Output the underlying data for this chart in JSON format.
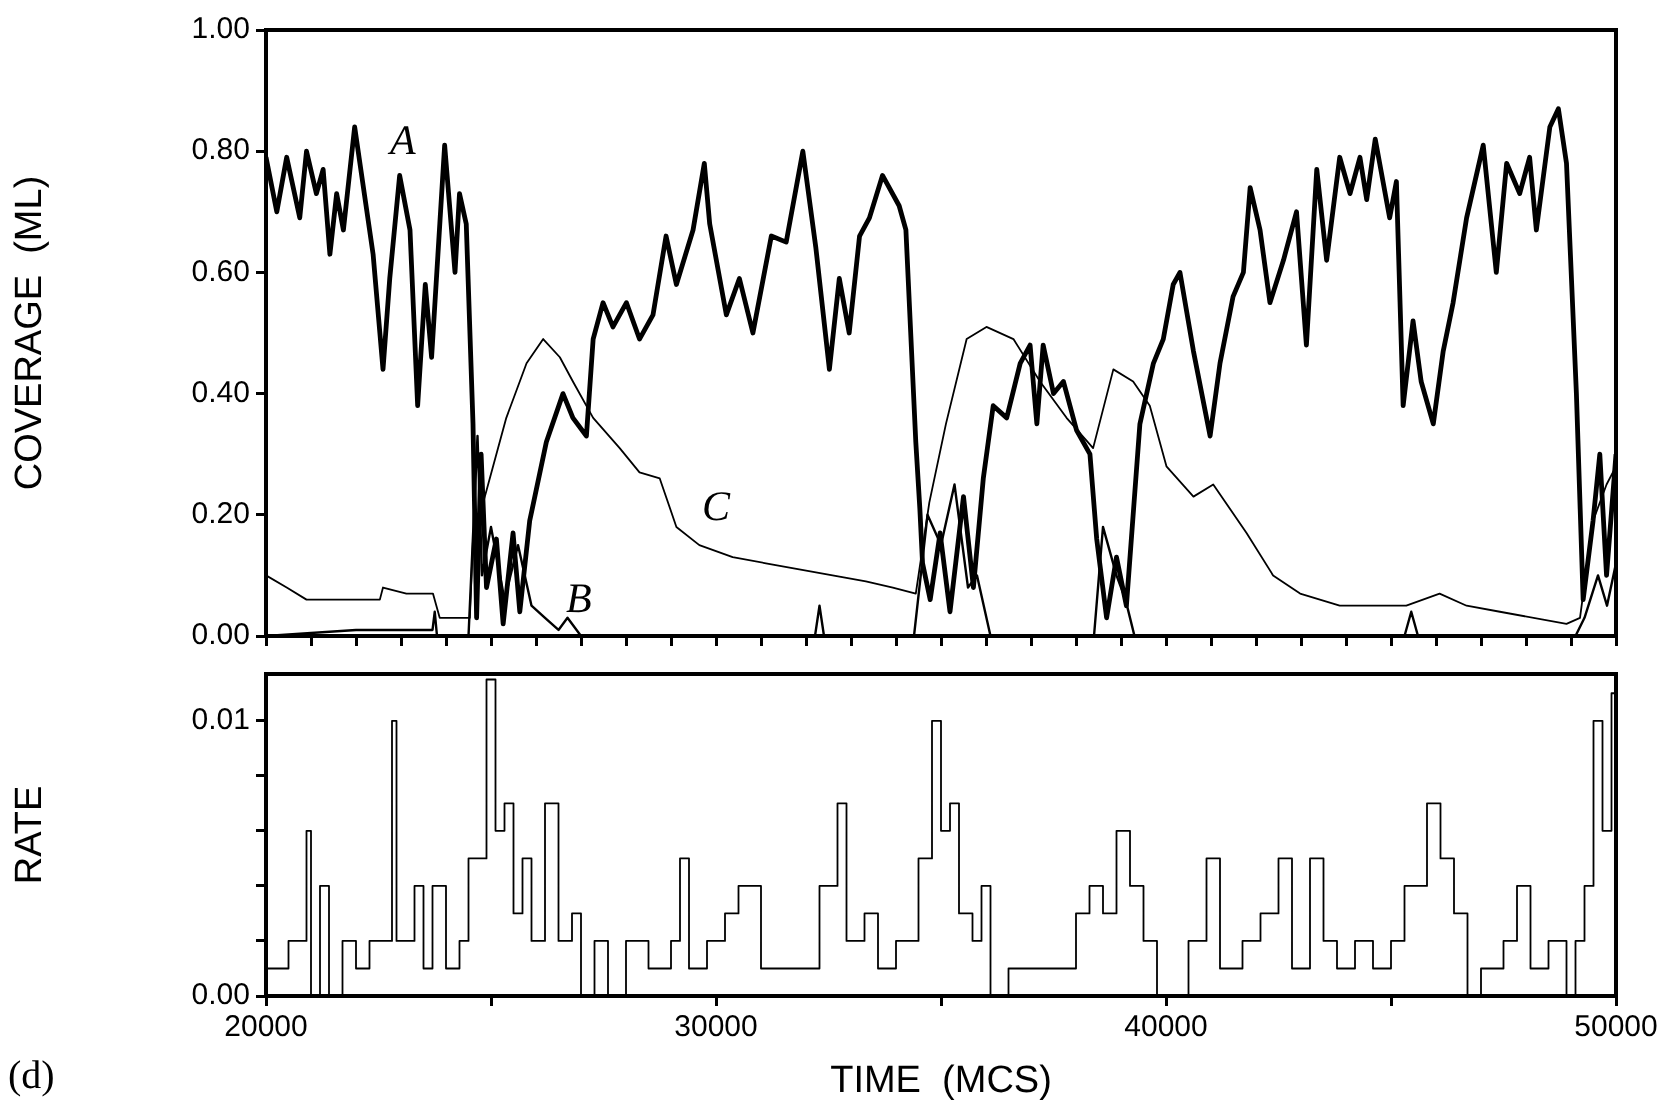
{
  "chart_data": [
    {
      "type": "line",
      "ylabel": "COVERAGE  (ML)",
      "xlim": [
        20000,
        50000
      ],
      "ylim": [
        0,
        1
      ],
      "xticks": [
        {
          "value": 20000,
          "label": null
        },
        {
          "value": 21000,
          "label": null
        },
        {
          "value": 22000,
          "label": null
        },
        {
          "value": 23000,
          "label": null
        },
        {
          "value": 24000,
          "label": null
        },
        {
          "value": 25000,
          "label": null
        },
        {
          "value": 26000,
          "label": null
        },
        {
          "value": 27000,
          "label": null
        },
        {
          "value": 28000,
          "label": null
        },
        {
          "value": 29000,
          "label": null
        },
        {
          "value": 30000,
          "label": null
        },
        {
          "value": 31000,
          "label": null
        },
        {
          "value": 32000,
          "label": null
        },
        {
          "value": 33000,
          "label": null
        },
        {
          "value": 34000,
          "label": null
        },
        {
          "value": 35000,
          "label": null
        },
        {
          "value": 36000,
          "label": null
        },
        {
          "value": 37000,
          "label": null
        },
        {
          "value": 38000,
          "label": null
        },
        {
          "value": 39000,
          "label": null
        },
        {
          "value": 40000,
          "label": null
        },
        {
          "value": 41000,
          "label": null
        },
        {
          "value": 42000,
          "label": null
        },
        {
          "value": 43000,
          "label": null
        },
        {
          "value": 44000,
          "label": null
        },
        {
          "value": 45000,
          "label": null
        },
        {
          "value": 46000,
          "label": null
        },
        {
          "value": 47000,
          "label": null
        },
        {
          "value": 48000,
          "label": null
        },
        {
          "value": 49000,
          "label": null
        },
        {
          "value": 50000,
          "label": null
        }
      ],
      "yticks": [
        {
          "value": 0,
          "label": "0.00"
        },
        {
          "value": 0.2,
          "label": "0.20"
        },
        {
          "value": 0.4,
          "label": "0.40"
        },
        {
          "value": 0.6,
          "label": "0.60"
        },
        {
          "value": 0.8,
          "label": "0.80"
        },
        {
          "value": 1,
          "label": "1.00"
        }
      ],
      "tick_labels": "y",
      "grid": false,
      "legend": false,
      "marker": "none",
      "annotations": [
        "A",
        "B",
        "C"
      ],
      "series": [
        {
          "color": "#000000",
          "x": [
            20000,
            20240,
            20460,
            20750,
            20900,
            21120,
            21270,
            21420,
            21570,
            21720,
            21970,
            22380,
            22600,
            22750,
            22970,
            23200,
            23370,
            23540,
            23680,
            23970,
            24200,
            24300,
            24450,
            24600,
            24680,
            24780,
            24900,
            25120,
            25270,
            25490,
            25640,
            25860,
            26230,
            26600,
            26820,
            27120,
            27270,
            27490,
            27710,
            28010,
            28300,
            28600,
            28890,
            29120,
            29490,
            29740,
            29860,
            30230,
            30520,
            30820,
            31230,
            31560,
            31930,
            32220,
            32520,
            32740,
            32960,
            33190,
            33410,
            33700,
            34070,
            34220,
            34440,
            34530,
            34590,
            34760,
            34980,
            35200,
            35500,
            35720,
            35940,
            36160,
            36460,
            36760,
            36980,
            37130,
            37270,
            37500,
            37720,
            38010,
            38310,
            38460,
            38680,
            38900,
            39120,
            39420,
            39720,
            39940,
            40160,
            40310,
            40610,
            40980,
            41200,
            41490,
            41720,
            41870,
            42090,
            42310,
            42610,
            42900,
            43120,
            43350,
            43570,
            43860,
            44090,
            44310,
            44460,
            44650,
            44970,
            45120,
            45270,
            45490,
            45670,
            45940,
            46160,
            46380,
            46680,
            47050,
            47340,
            47570,
            47860,
            48080,
            48230,
            48530,
            48720,
            48900,
            49120,
            49270,
            49490,
            49640,
            49790,
            50000
          ],
          "values": [
            0.79,
            0.7,
            0.79,
            0.69,
            0.8,
            0.73,
            0.77,
            0.63,
            0.73,
            0.67,
            0.84,
            0.63,
            0.44,
            0.59,
            0.76,
            0.67,
            0.38,
            0.58,
            0.46,
            0.81,
            0.6,
            0.73,
            0.68,
            0.35,
            0.03,
            0.3,
            0.08,
            0.16,
            0.02,
            0.17,
            0.04,
            0.19,
            0.32,
            0.4,
            0.36,
            0.33,
            0.49,
            0.55,
            0.51,
            0.55,
            0.49,
            0.53,
            0.66,
            0.58,
            0.67,
            0.78,
            0.68,
            0.53,
            0.59,
            0.5,
            0.66,
            0.65,
            0.8,
            0.64,
            0.44,
            0.59,
            0.5,
            0.66,
            0.69,
            0.76,
            0.71,
            0.67,
            0.32,
            0.21,
            0.12,
            0.06,
            0.17,
            0.04,
            0.23,
            0.08,
            0.26,
            0.38,
            0.36,
            0.45,
            0.48,
            0.35,
            0.48,
            0.4,
            0.42,
            0.34,
            0.3,
            0.16,
            0.03,
            0.13,
            0.05,
            0.35,
            0.45,
            0.49,
            0.58,
            0.6,
            0.47,
            0.33,
            0.45,
            0.56,
            0.6,
            0.74,
            0.67,
            0.55,
            0.62,
            0.7,
            0.48,
            0.77,
            0.62,
            0.79,
            0.73,
            0.79,
            0.72,
            0.82,
            0.69,
            0.75,
            0.38,
            0.52,
            0.42,
            0.35,
            0.47,
            0.55,
            0.69,
            0.81,
            0.6,
            0.78,
            0.73,
            0.79,
            0.67,
            0.84,
            0.87,
            0.78,
            0.4,
            0.06,
            0.19,
            0.3,
            0.1,
            0.3
          ]
        },
        {
          "color": "#000000",
          "x": [
            20000,
            22000,
            23700,
            23750,
            23800,
            24500,
            24700,
            24800,
            25000,
            25300,
            25600,
            25900,
            26200,
            26500,
            26700,
            27000,
            32200,
            32300,
            32400,
            34400,
            34700,
            35000,
            35300,
            35600,
            35800,
            36100,
            38400,
            38600,
            38900,
            39100,
            39300,
            45300,
            45450,
            45600,
            49100,
            49300,
            49600,
            49800,
            50000
          ],
          "values": [
            0,
            0.01,
            0.01,
            0.04,
            0,
            0,
            0.33,
            0.1,
            0.18,
            0.06,
            0.15,
            0.05,
            0.03,
            0.01,
            0.03,
            0,
            0,
            0.05,
            0,
            0,
            0.2,
            0.15,
            0.25,
            0.08,
            0.1,
            0,
            0,
            0.18,
            0.1,
            0.06,
            0,
            0,
            0.04,
            0,
            0,
            0.03,
            0.1,
            0.05,
            0.12
          ]
        },
        {
          "color": "#000000",
          "x": [
            20000,
            20460,
            20900,
            22530,
            22600,
            23120,
            23710,
            23860,
            24530,
            24600,
            24900,
            25340,
            25790,
            26160,
            26530,
            26820,
            27270,
            27860,
            28300,
            28750,
            29120,
            29630,
            30370,
            31110,
            31850,
            32590,
            33330,
            33930,
            34440,
            34740,
            35110,
            35570,
            36010,
            36610,
            37200,
            37790,
            38380,
            38830,
            39270,
            39640,
            40010,
            40610,
            41050,
            41790,
            42380,
            42980,
            43860,
            45340,
            46080,
            46680,
            47420,
            48900,
            49200,
            49490,
            49790,
            50000
          ],
          "values": [
            0.1,
            0.08,
            0.06,
            0.06,
            0.08,
            0.07,
            0.07,
            0.03,
            0.03,
            0.16,
            0.24,
            0.36,
            0.45,
            0.49,
            0.46,
            0.42,
            0.36,
            0.31,
            0.27,
            0.26,
            0.18,
            0.15,
            0.13,
            0.12,
            0.11,
            0.1,
            0.09,
            0.08,
            0.07,
            0.22,
            0.35,
            0.49,
            0.51,
            0.49,
            0.42,
            0.36,
            0.31,
            0.44,
            0.42,
            0.38,
            0.28,
            0.23,
            0.25,
            0.17,
            0.1,
            0.07,
            0.05,
            0.05,
            0.07,
            0.05,
            0.04,
            0.02,
            0.03,
            0.19,
            0.25,
            0.28
          ]
        }
      ]
    },
    {
      "type": "step",
      "ylabel": "RATE",
      "xlabel": "TIME  (MCS)",
      "xlim": [
        20000,
        50000
      ],
      "ylim": [
        0,
        0.0117
      ],
      "xticks": [
        20000,
        {
          "value": 25000,
          "label": null
        },
        30000,
        {
          "value": 35000,
          "label": null
        },
        40000,
        {
          "value": 45000,
          "label": null
        },
        50000
      ],
      "yticks": [
        {
          "value": 0,
          "label": "0.00"
        },
        {
          "value": 0.002,
          "label": null
        },
        {
          "value": 0.004,
          "label": null
        },
        {
          "value": 0.006,
          "label": null
        },
        {
          "value": 0.008,
          "label": null
        },
        {
          "value": 0.01,
          "label": "0.01"
        }
      ],
      "grid": false,
      "legend": false,
      "marker": "none",
      "annotations": [
        "(d)"
      ],
      "x": [
        20000,
        20500,
        20900,
        21000,
        21200,
        21400,
        21700,
        22000,
        22300,
        22600,
        22800,
        22900,
        23300,
        23500,
        23700,
        24000,
        24300,
        24500,
        24900,
        25100,
        25300,
        25500,
        25700,
        25900,
        26200,
        26500,
        26800,
        27000,
        27300,
        27600,
        28000,
        28500,
        29000,
        29200,
        29400,
        29800,
        30200,
        30500,
        30800,
        31000,
        31500,
        32000,
        32300,
        32700,
        32900,
        33300,
        33600,
        34000,
        34500,
        34800,
        35000,
        35200,
        35400,
        35700,
        35900,
        36100,
        36500,
        37000,
        37500,
        38000,
        38300,
        38600,
        38900,
        39200,
        39500,
        39800,
        40200,
        40500,
        40900,
        41200,
        41700,
        42100,
        42500,
        42800,
        43200,
        43500,
        43800,
        44200,
        44600,
        45000,
        45300,
        45800,
        46100,
        46400,
        46700,
        47000,
        47500,
        47800,
        48100,
        48500,
        48900,
        49100,
        49300,
        49500,
        49700,
        49900,
        50000
      ],
      "values": [
        0.001,
        0.002,
        0.006,
        0,
        0.004,
        0,
        0.002,
        0.001,
        0.002,
        0.002,
        0.01,
        0.002,
        0.004,
        0.001,
        0.004,
        0.001,
        0.002,
        0.005,
        0.0115,
        0.006,
        0.007,
        0.003,
        0.005,
        0.002,
        0.007,
        0.002,
        0.003,
        0,
        0.002,
        0,
        0.002,
        0.001,
        0.002,
        0.005,
        0.001,
        0.002,
        0.003,
        0.004,
        0.004,
        0.001,
        0.001,
        0.001,
        0.004,
        0.007,
        0.002,
        0.003,
        0.001,
        0.002,
        0.005,
        0.01,
        0.006,
        0.007,
        0.003,
        0.002,
        0.004,
        0,
        0.001,
        0.001,
        0.001,
        0.003,
        0.004,
        0.003,
        0.006,
        0.004,
        0.002,
        0,
        0,
        0.002,
        0.005,
        0.001,
        0.002,
        0.003,
        0.005,
        0.001,
        0.005,
        0.002,
        0.001,
        0.002,
        0.001,
        0.002,
        0.004,
        0.007,
        0.005,
        0.003,
        0,
        0.001,
        0.002,
        0.004,
        0.001,
        0.002,
        0,
        0.002,
        0.004,
        0.01,
        0.006,
        0.011,
        0.003
      ],
      "color": "#000000"
    }
  ]
}
